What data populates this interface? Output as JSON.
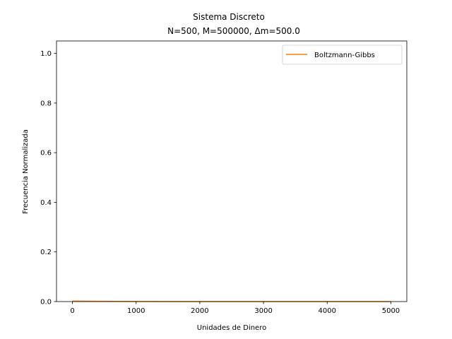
{
  "chart_data": {
    "type": "line",
    "title": "Sistema Discreto",
    "subtitle": "N=500, M=500000, Δm=500.0",
    "xlabel": "Unidades de Dinero",
    "ylabel": "Frecuencia Normalizada",
    "xlim": [
      -250,
      5250
    ],
    "ylim": [
      0,
      1.05
    ],
    "x_ticks": [
      0,
      1000,
      2000,
      3000,
      4000,
      5000
    ],
    "x_tick_labels": [
      "0",
      "1000",
      "2000",
      "3000",
      "4000",
      "5000"
    ],
    "y_ticks": [
      0.0,
      0.2,
      0.4,
      0.6,
      0.8,
      1.0
    ],
    "y_tick_labels": [
      "0.0",
      "0.2",
      "0.4",
      "0.6",
      "0.8",
      "1.0"
    ],
    "grid": false,
    "legend_position": "top-right",
    "series": [
      {
        "name": "Boltzmann-Gibbs",
        "color": "#ff7f0e",
        "x": [
          0,
          1000,
          2000,
          3000,
          4000,
          5000
        ],
        "y": [
          0.002,
          0.0003,
          4e-05,
          5e-06,
          7e-07,
          1e-07
        ]
      }
    ]
  }
}
